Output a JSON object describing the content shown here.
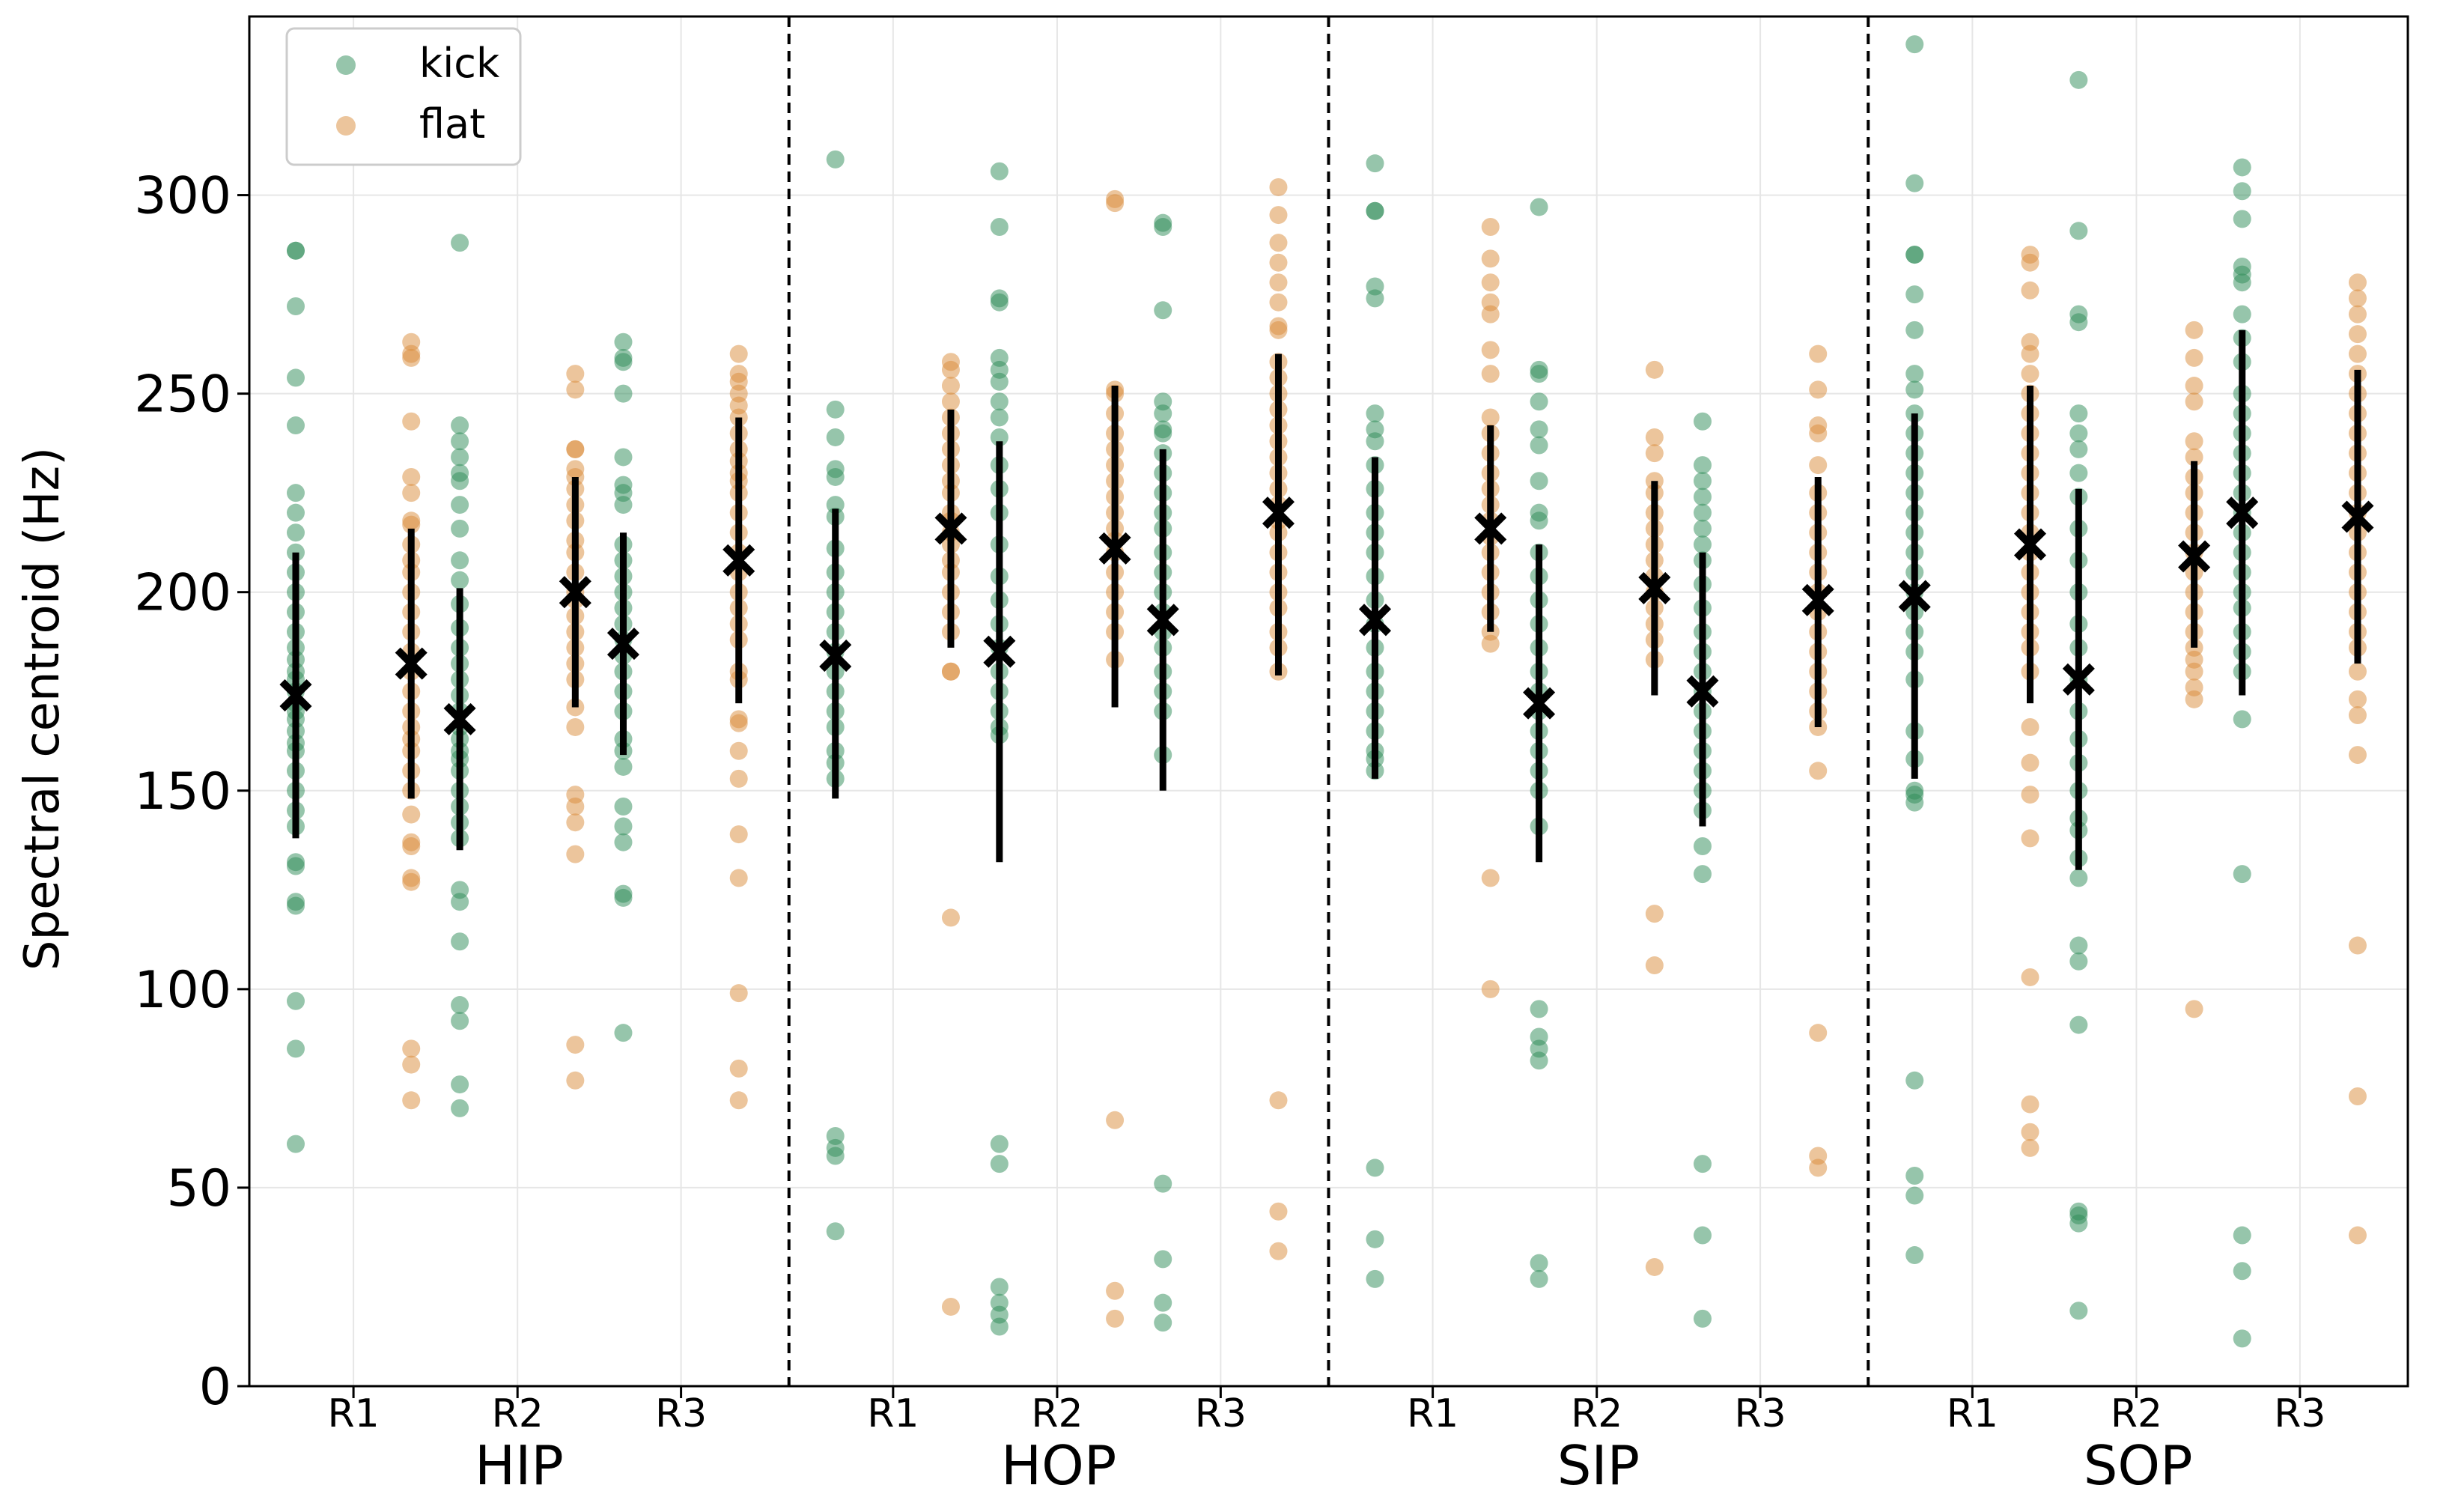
{
  "chart_data": {
    "type": "scatter",
    "title": "",
    "xlabel": "",
    "ylabel": "Spectral centroid (Hz)",
    "ylim": [
      0,
      345
    ],
    "yticks": [
      0,
      50,
      100,
      150,
      200,
      250,
      300
    ],
    "grid": true,
    "legend": {
      "position": "top-left",
      "entries": [
        {
          "name": "kick",
          "color": "#2e8b57"
        },
        {
          "name": "flat",
          "color": "#d98c3a"
        }
      ]
    },
    "colors": {
      "kick": "#2e8b57",
      "flat": "#d98c3a",
      "summary": "#000000"
    },
    "groups": [
      {
        "name": "HIP",
        "subgroups": [
          {
            "label": "R1",
            "kick": {
              "mean": 174,
              "sd_low": 138,
              "sd_high": 210,
              "points": [
                61,
                85,
                97,
                121,
                122,
                131,
                132,
                141,
                145,
                150,
                155,
                160,
                162,
                165,
                168,
                170,
                172,
                175,
                178,
                180,
                183,
                186,
                190,
                195,
                200,
                205,
                210,
                215,
                220,
                225,
                242,
                254,
                272,
                286,
                286
              ]
            },
            "flat": {
              "mean": 182,
              "sd_low": 148,
              "sd_high": 216,
              "points": [
                72,
                81,
                85,
                127,
                128,
                136,
                137,
                144,
                150,
                155,
                160,
                163,
                166,
                170,
                175,
                180,
                185,
                190,
                195,
                200,
                205,
                208,
                212,
                217,
                218,
                225,
                229,
                243,
                259,
                260,
                263
              ]
            }
          },
          {
            "label": "R2",
            "kick": {
              "mean": 168,
              "sd_low": 135,
              "sd_high": 201,
              "points": [
                70,
                76,
                92,
                96,
                112,
                122,
                125,
                138,
                142,
                146,
                150,
                155,
                158,
                160,
                163,
                166,
                170,
                174,
                178,
                182,
                186,
                191,
                197,
                203,
                208,
                216,
                222,
                228,
                230,
                234,
                238,
                242,
                288
              ]
            },
            "flat": {
              "mean": 200,
              "sd_low": 171,
              "sd_high": 229,
              "points": [
                77,
                86,
                134,
                142,
                146,
                149,
                166,
                171,
                178,
                182,
                186,
                190,
                194,
                198,
                200,
                205,
                210,
                213,
                218,
                222,
                226,
                229,
                231,
                236,
                236,
                251,
                255
              ]
            }
          },
          {
            "label": "R3",
            "kick": {
              "mean": 187,
              "sd_low": 159,
              "sd_high": 215,
              "points": [
                89,
                123,
                124,
                137,
                141,
                146,
                156,
                160,
                163,
                170,
                175,
                180,
                184,
                188,
                192,
                196,
                200,
                204,
                208,
                212,
                222,
                225,
                227,
                234,
                250,
                258,
                259,
                263
              ]
            },
            "flat": {
              "mean": 208,
              "sd_low": 172,
              "sd_high": 244,
              "points": [
                72,
                80,
                99,
                128,
                139,
                153,
                160,
                167,
                168,
                178,
                180,
                188,
                192,
                196,
                200,
                205,
                210,
                215,
                220,
                225,
                228,
                230,
                233,
                236,
                240,
                244,
                247,
                250,
                253,
                255,
                260
              ]
            }
          }
        ]
      },
      {
        "name": "HOP",
        "subgroups": [
          {
            "label": "R1",
            "kick": {
              "mean": 184,
              "sd_low": 148,
              "sd_high": 221,
              "points": [
                39,
                58,
                60,
                63,
                153,
                157,
                160,
                166,
                170,
                175,
                180,
                185,
                190,
                195,
                200,
                205,
                211,
                219,
                222,
                229,
                231,
                239,
                246,
                309
              ]
            },
            "flat": {
              "mean": 216,
              "sd_low": 186,
              "sd_high": 246,
              "points": [
                20,
                118,
                180,
                180,
                190,
                195,
                200,
                205,
                208,
                212,
                215,
                218,
                220,
                225,
                228,
                232,
                236,
                240,
                244,
                248,
                252,
                256,
                258
              ]
            }
          },
          {
            "label": "R2",
            "kick": {
              "mean": 185,
              "sd_low": 132,
              "sd_high": 238,
              "points": [
                15,
                18,
                21,
                25,
                56,
                61,
                164,
                166,
                170,
                175,
                180,
                186,
                192,
                198,
                204,
                212,
                220,
                226,
                232,
                239,
                244,
                248,
                253,
                256,
                259,
                273,
                274,
                292,
                306
              ]
            },
            "flat": {
              "mean": 211,
              "sd_low": 171,
              "sd_high": 252,
              "points": [
                17,
                24,
                67,
                183,
                190,
                195,
                200,
                205,
                210,
                213,
                216,
                220,
                224,
                228,
                232,
                236,
                240,
                245,
                250,
                251,
                298,
                299
              ]
            }
          },
          {
            "label": "R3",
            "kick": {
              "mean": 193,
              "sd_low": 150,
              "sd_high": 236,
              "points": [
                16,
                21,
                32,
                51,
                159,
                170,
                175,
                180,
                186,
                190,
                195,
                200,
                205,
                210,
                216,
                220,
                225,
                230,
                235,
                240,
                241,
                245,
                248,
                271,
                292,
                293
              ]
            },
            "flat": {
              "mean": 220,
              "sd_low": 179,
              "sd_high": 260,
              "points": [
                34,
                44,
                72,
                180,
                186,
                190,
                196,
                200,
                205,
                210,
                215,
                218,
                222,
                226,
                230,
                234,
                238,
                242,
                246,
                250,
                254,
                258,
                266,
                267,
                273,
                278,
                283,
                288,
                295,
                302
              ]
            }
          }
        ]
      },
      {
        "name": "SIP",
        "subgroups": [
          {
            "label": "R1",
            "kick": {
              "mean": 193,
              "sd_low": 153,
              "sd_high": 234,
              "points": [
                27,
                37,
                55,
                155,
                158,
                160,
                165,
                170,
                175,
                180,
                186,
                192,
                198,
                204,
                210,
                215,
                220,
                226,
                232,
                238,
                241,
                245,
                274,
                277,
                296,
                296,
                308
              ]
            },
            "flat": {
              "mean": 216,
              "sd_low": 190,
              "sd_high": 242,
              "points": [
                100,
                128,
                187,
                190,
                195,
                200,
                205,
                210,
                214,
                218,
                222,
                226,
                230,
                235,
                240,
                244,
                255,
                261,
                270,
                273,
                278,
                284,
                292
              ]
            }
          },
          {
            "label": "R2",
            "kick": {
              "mean": 172,
              "sd_low": 132,
              "sd_high": 212,
              "points": [
                27,
                31,
                82,
                85,
                88,
                95,
                141,
                150,
                155,
                160,
                165,
                170,
                175,
                180,
                186,
                192,
                198,
                204,
                210,
                218,
                220,
                228,
                237,
                241,
                248,
                255,
                256,
                297
              ]
            },
            "flat": {
              "mean": 201,
              "sd_low": 174,
              "sd_high": 228,
              "points": [
                30,
                106,
                119,
                183,
                188,
                192,
                196,
                200,
                204,
                208,
                212,
                216,
                220,
                225,
                228,
                235,
                239,
                256
              ]
            }
          },
          {
            "label": "R3",
            "kick": {
              "mean": 175,
              "sd_low": 141,
              "sd_high": 210,
              "points": [
                17,
                38,
                56,
                129,
                136,
                145,
                150,
                155,
                160,
                165,
                170,
                175,
                180,
                185,
                190,
                196,
                202,
                208,
                212,
                216,
                220,
                224,
                228,
                232,
                243
              ]
            },
            "flat": {
              "mean": 198,
              "sd_low": 166,
              "sd_high": 229,
              "points": [
                55,
                58,
                89,
                155,
                166,
                170,
                175,
                180,
                185,
                190,
                195,
                200,
                205,
                210,
                215,
                220,
                225,
                232,
                240,
                242,
                251,
                260
              ]
            }
          }
        ]
      },
      {
        "name": "SOP",
        "subgroups": [
          {
            "label": "R1",
            "kick": {
              "mean": 199,
              "sd_low": 153,
              "sd_high": 245,
              "points": [
                33,
                48,
                53,
                77,
                147,
                149,
                150,
                158,
                165,
                178,
                185,
                190,
                195,
                200,
                205,
                210,
                215,
                220,
                225,
                230,
                235,
                240,
                245,
                251,
                255,
                266,
                275,
                285,
                285,
                303,
                338
              ]
            },
            "flat": {
              "mean": 212,
              "sd_low": 172,
              "sd_high": 252,
              "points": [
                60,
                64,
                71,
                103,
                138,
                149,
                157,
                166,
                180,
                186,
                190,
                195,
                200,
                205,
                210,
                215,
                220,
                225,
                230,
                235,
                240,
                245,
                250,
                255,
                260,
                263,
                276,
                283,
                285
              ]
            }
          },
          {
            "label": "R2",
            "kick": {
              "mean": 178,
              "sd_low": 130,
              "sd_high": 226,
              "points": [
                19,
                41,
                43,
                44,
                91,
                107,
                111,
                128,
                133,
                140,
                143,
                150,
                157,
                163,
                170,
                178,
                186,
                192,
                200,
                208,
                216,
                224,
                230,
                236,
                240,
                245,
                268,
                270,
                291,
                329
              ]
            },
            "flat": {
              "mean": 209,
              "sd_low": 186,
              "sd_high": 233,
              "points": [
                95,
                173,
                176,
                180,
                183,
                186,
                190,
                195,
                200,
                205,
                210,
                215,
                220,
                225,
                229,
                234,
                238,
                248,
                252,
                259,
                266
              ]
            }
          },
          {
            "label": "R3",
            "kick": {
              "mean": 220,
              "sd_low": 174,
              "sd_high": 266,
              "points": [
                12,
                29,
                38,
                129,
                168,
                180,
                185,
                190,
                196,
                200,
                205,
                210,
                215,
                220,
                225,
                230,
                235,
                240,
                245,
                250,
                258,
                264,
                270,
                278,
                280,
                282,
                294,
                301,
                307
              ]
            },
            "flat": {
              "mean": 219,
              "sd_low": 182,
              "sd_high": 256,
              "points": [
                38,
                73,
                111,
                159,
                169,
                173,
                180,
                186,
                190,
                195,
                200,
                205,
                210,
                215,
                220,
                225,
                230,
                235,
                240,
                245,
                250,
                255,
                260,
                265,
                270,
                274,
                278
              ]
            }
          }
        ]
      }
    ]
  }
}
